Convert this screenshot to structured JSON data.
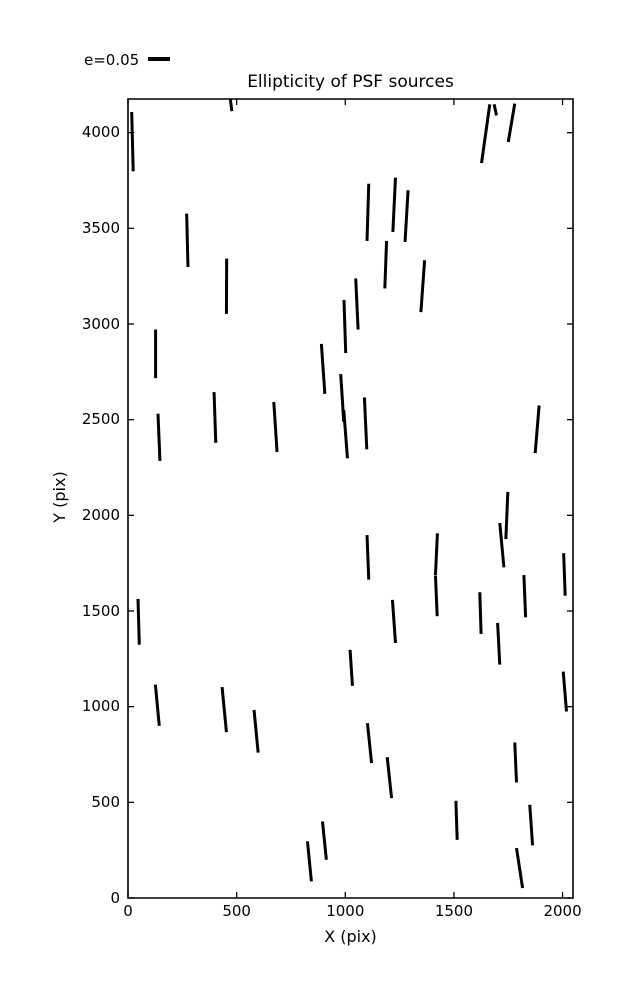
{
  "figure": {
    "background": "#ffffff",
    "foreground": "#000000"
  },
  "chart_data": {
    "type": "quiver",
    "title": "Ellipticity of PSF sources",
    "xlabel": "X (pix)",
    "ylabel": "Y (pix)",
    "xlim": [
      0,
      2048
    ],
    "ylim": [
      0,
      4176
    ],
    "xticks": [
      0,
      500,
      1000,
      1500,
      2000
    ],
    "yticks": [
      0,
      500,
      1000,
      1500,
      2000,
      2500,
      3000,
      3500,
      4000
    ],
    "grid": false,
    "legend": {
      "label": "e=0.05",
      "position": "upper-left-outside",
      "sample_is_horizontal_segment": true
    },
    "series_color": "#000000",
    "segment_note": "Each item is one PSF ellipticity whisker: [x1, y1, x2, y2] in pixel coordinates of the detector; stick length/orientation encode ellipticity.",
    "segments": [
      [
        17,
        4108,
        24,
        3798
      ],
      [
        471,
        4176,
        478,
        4112
      ],
      [
        270,
        3577,
        276,
        3298
      ],
      [
        454,
        3342,
        453,
        3053
      ],
      [
        1665,
        4148,
        1627,
        3841
      ],
      [
        1685,
        4148,
        1696,
        4090
      ],
      [
        1780,
        4152,
        1750,
        3951
      ],
      [
        1108,
        3733,
        1100,
        3434
      ],
      [
        1231,
        3765,
        1219,
        3481
      ],
      [
        1289,
        3699,
        1275,
        3429
      ],
      [
        1190,
        3434,
        1182,
        3186
      ],
      [
        1365,
        3333,
        1348,
        3062
      ],
      [
        1048,
        3238,
        1059,
        2971
      ],
      [
        994,
        3126,
        1002,
        2848
      ],
      [
        127,
        2971,
        127,
        2717
      ],
      [
        138,
        2531,
        147,
        2284
      ],
      [
        396,
        2644,
        404,
        2379
      ],
      [
        671,
        2592,
        686,
        2331
      ],
      [
        890,
        2896,
        906,
        2635
      ],
      [
        979,
        2738,
        993,
        2489
      ],
      [
        993,
        2550,
        1010,
        2298
      ],
      [
        1088,
        2616,
        1099,
        2345
      ],
      [
        1892,
        2574,
        1874,
        2325
      ],
      [
        1748,
        2122,
        1739,
        1876
      ],
      [
        1711,
        1960,
        1730,
        1728
      ],
      [
        1100,
        1897,
        1108,
        1664
      ],
      [
        1217,
        1558,
        1231,
        1333
      ],
      [
        1424,
        1906,
        1415,
        1688
      ],
      [
        1415,
        1685,
        1423,
        1473
      ],
      [
        1619,
        1598,
        1625,
        1380
      ],
      [
        1701,
        1438,
        1711,
        1220
      ],
      [
        1822,
        1688,
        1830,
        1467
      ],
      [
        2005,
        1802,
        2012,
        1580
      ],
      [
        46,
        1563,
        52,
        1324
      ],
      [
        1022,
        1297,
        1033,
        1109
      ],
      [
        126,
        1115,
        144,
        900
      ],
      [
        433,
        1102,
        453,
        867
      ],
      [
        580,
        983,
        599,
        760
      ],
      [
        826,
        296,
        844,
        87
      ],
      [
        895,
        400,
        913,
        200
      ],
      [
        2003,
        1183,
        2018,
        975
      ],
      [
        1102,
        914,
        1121,
        705
      ],
      [
        1193,
        736,
        1213,
        522
      ],
      [
        1509,
        508,
        1515,
        304
      ],
      [
        1780,
        813,
        1788,
        604
      ],
      [
        1849,
        487,
        1862,
        275
      ],
      [
        1788,
        261,
        1816,
        52
      ]
    ]
  }
}
